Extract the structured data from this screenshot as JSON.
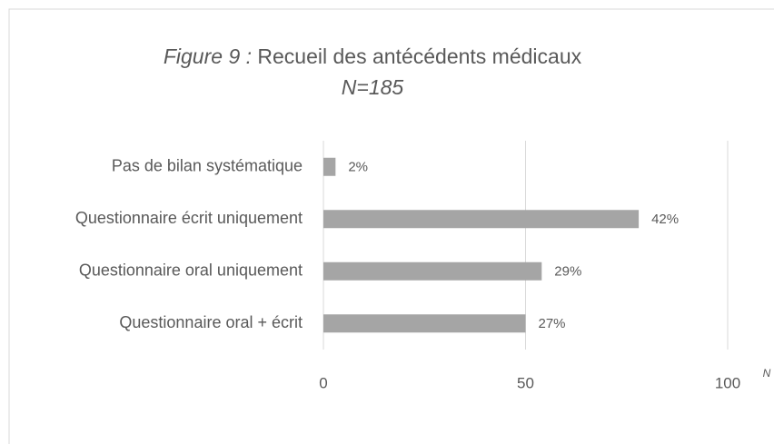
{
  "chart_data": {
    "type": "hbar",
    "title": {
      "label": "Figure 9 :",
      "text": "Recueil des antécédents médicaux"
    },
    "subtitle": "N=185",
    "xlabel": "N",
    "categories": [
      "Pas de bilan systématique",
      "Questionnaire écrit uniquement",
      "Questionnaire oral uniquement",
      "Questionnaire oral + écrit"
    ],
    "values": [
      3,
      78,
      54,
      50
    ],
    "value_labels": [
      "2%",
      "42%",
      "29%",
      "27%"
    ],
    "color": "#a5a5a5",
    "xlim": [
      0,
      100
    ],
    "xticks": [
      0,
      50,
      100
    ],
    "grid": true
  }
}
